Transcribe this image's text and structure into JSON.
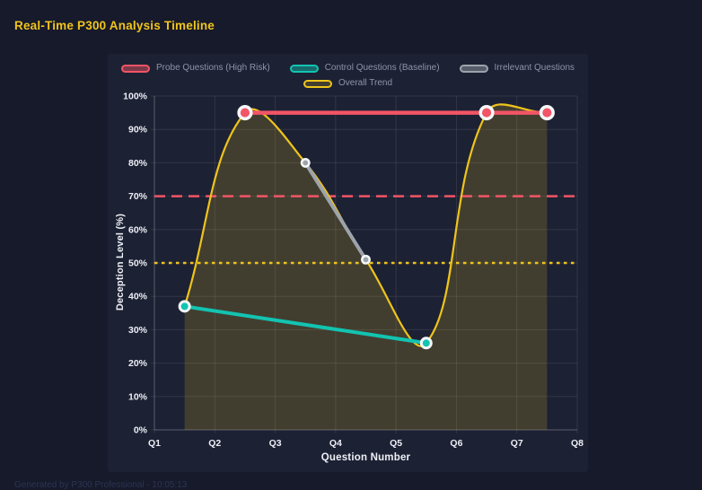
{
  "title": "Real-Time P300 Analysis Timeline",
  "footer": "Generated by P300 Professional - 10:05:13",
  "colors": {
    "page_bg": "#171a2b",
    "panel_bg": "#1d2134",
    "grid": "rgba(255,255,255,0.09)",
    "axis_border": "rgba(255,255,255,0.2)",
    "tick_text": "#eceff5",
    "legend_text": "#8e94a9",
    "title_text": "#f0c41c",
    "footer_text": "#2d3452",
    "marker_ring": "#f5f7fa",
    "probe": "#f25566",
    "control": "#12c4b1",
    "irrelevant": "#9da3ab",
    "trend": "#eec41b"
  },
  "legend": {
    "rows": [
      [
        {
          "label": "Probe Questions (High Risk)",
          "color": "probe"
        },
        {
          "label": "Control Questions (Baseline)",
          "color": "control"
        },
        {
          "label": "Irrelevant Questions",
          "color": "irrelevant"
        }
      ],
      [
        {
          "label": "Overall Trend",
          "color": "trend"
        }
      ]
    ]
  },
  "axes": {
    "x_title": "Question Number",
    "y_title": "Deception Level (%)",
    "x_tick_labels": [
      "Q1",
      "Q2",
      "Q3",
      "Q4",
      "Q5",
      "Q6",
      "Q7",
      "Q8"
    ],
    "y_tick_labels": [
      "0%",
      "10%",
      "20%",
      "30%",
      "40%",
      "50%",
      "60%",
      "70%",
      "80%",
      "90%",
      "100%"
    ]
  },
  "chart_data": {
    "type": "line",
    "title": "Real-Time P300 Analysis Timeline",
    "xlabel": "Question Number",
    "ylabel": "Deception Level (%)",
    "xlim": [
      1,
      8
    ],
    "ylim": [
      0,
      100
    ],
    "x_tick_labels": [
      "Q1",
      "Q2",
      "Q3",
      "Q4",
      "Q5",
      "Q6",
      "Q7",
      "Q8"
    ],
    "grid": true,
    "legend_position": "top",
    "series": [
      {
        "name": "Probe Questions (High Risk)",
        "color_key": "probe",
        "points": [
          [
            2.5,
            95
          ],
          [
            6.5,
            95
          ],
          [
            7.5,
            95
          ]
        ],
        "smooth": false,
        "markers": true
      },
      {
        "name": "Control Questions (Baseline)",
        "color_key": "control",
        "points": [
          [
            1.5,
            37
          ],
          [
            5.5,
            26
          ]
        ],
        "smooth": false,
        "markers": true
      },
      {
        "name": "Irrelevant Questions",
        "color_key": "irrelevant",
        "points": [
          [
            3.5,
            80
          ],
          [
            4.5,
            51
          ]
        ],
        "smooth": false,
        "markers": true
      },
      {
        "name": "Overall Trend",
        "color_key": "trend",
        "points": [
          [
            1.5,
            37
          ],
          [
            2.5,
            95
          ],
          [
            3.5,
            80
          ],
          [
            4.5,
            51
          ],
          [
            5.5,
            26
          ],
          [
            6.5,
            95
          ],
          [
            7.5,
            95
          ]
        ],
        "smooth": true,
        "markers": false,
        "fill_to_zero": true
      }
    ],
    "thresholds": [
      {
        "value": 70,
        "color_key": "probe",
        "style": "dashed"
      },
      {
        "value": 50,
        "color_key": "trend",
        "style": "dotted"
      }
    ]
  }
}
